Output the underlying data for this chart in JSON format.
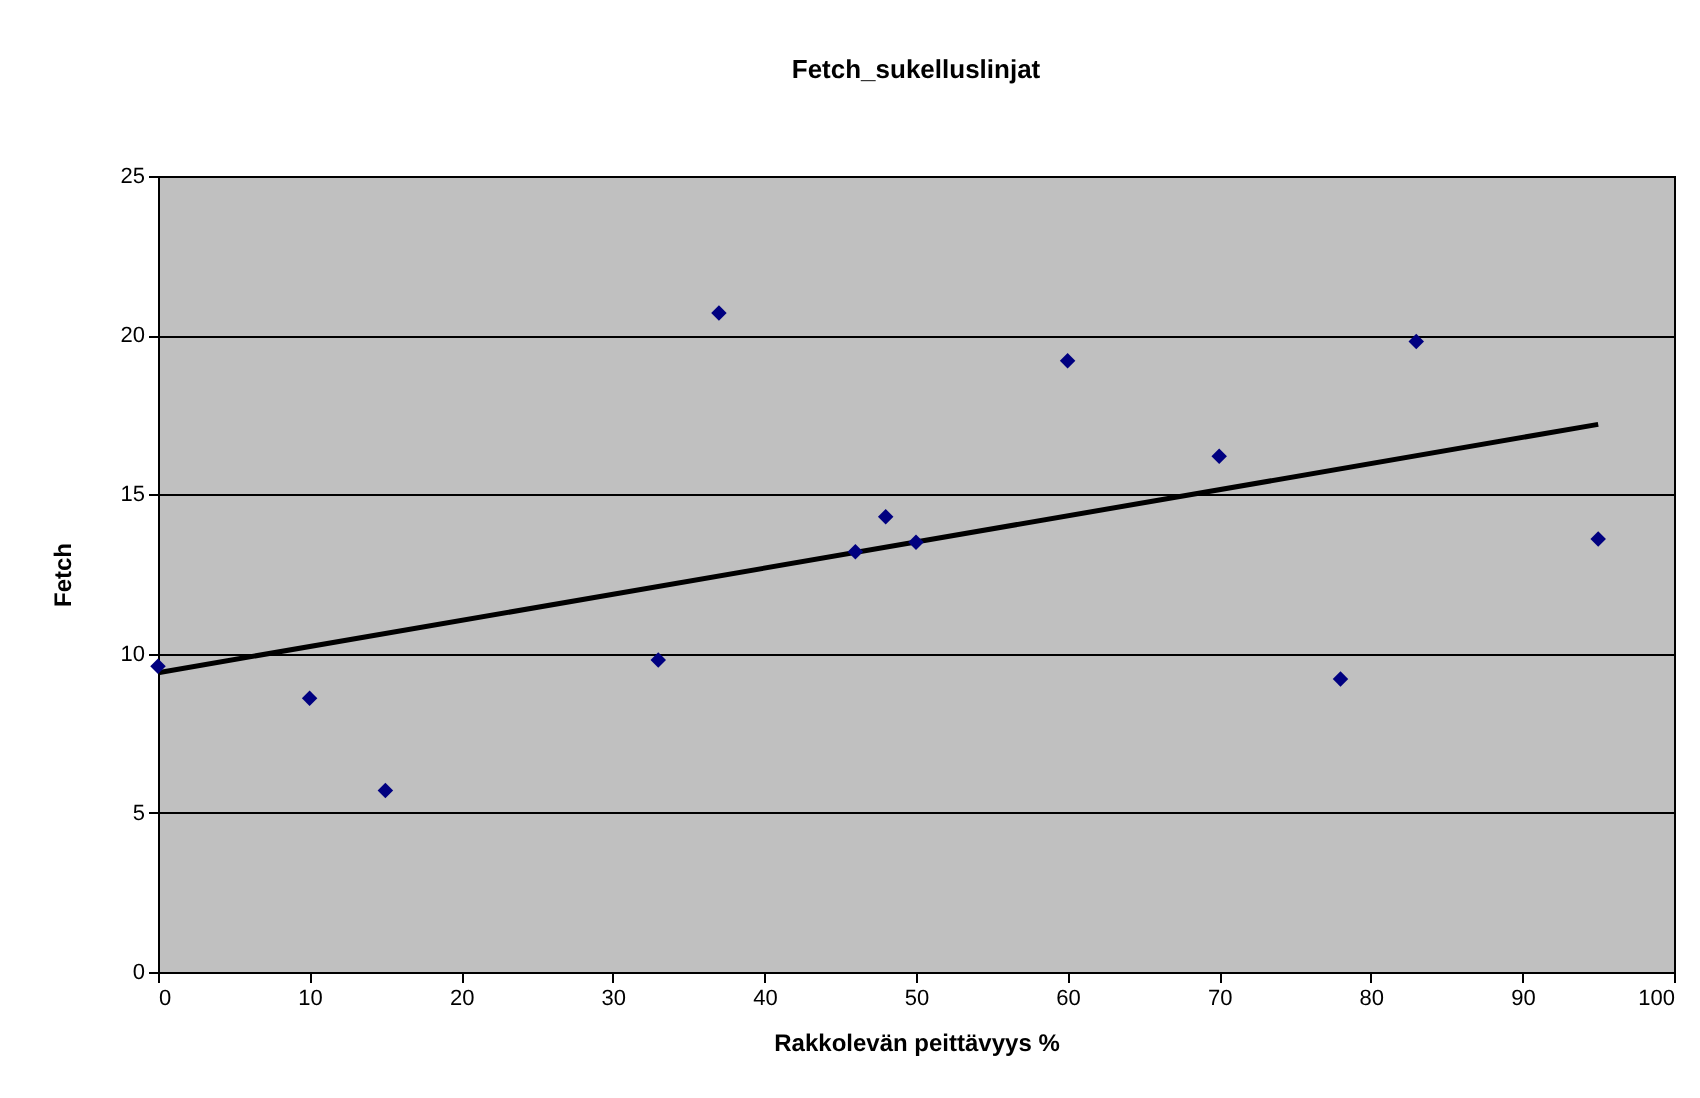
{
  "chart_data": {
    "type": "scatter",
    "title": "Fetch_sukelluslinjat",
    "xlabel": "Rakkolevän peittävyys %",
    "ylabel": "Fetch",
    "x": [
      0,
      10,
      15,
      33,
      37,
      46,
      48,
      50,
      60,
      70,
      78,
      83,
      95
    ],
    "series": [
      {
        "color": "#000080",
        "marker": "diamond",
        "values": [
          9.6,
          8.6,
          5.7,
          9.8,
          20.7,
          13.2,
          14.3,
          13.5,
          19.2,
          16.2,
          9.2,
          19.8,
          13.6
        ]
      },
      {
        "type": "line",
        "color": "#000000",
        "x": [
          0,
          95
        ],
        "values": [
          9.4,
          17.2
        ]
      }
    ],
    "xlim": [
      0,
      100
    ],
    "xticks": [
      0,
      10,
      20,
      30,
      40,
      50,
      60,
      70,
      80,
      90,
      100
    ],
    "ylim": [
      0,
      25
    ],
    "yticks": [
      0,
      5,
      10,
      15,
      20,
      25
    ],
    "grid": "y"
  }
}
